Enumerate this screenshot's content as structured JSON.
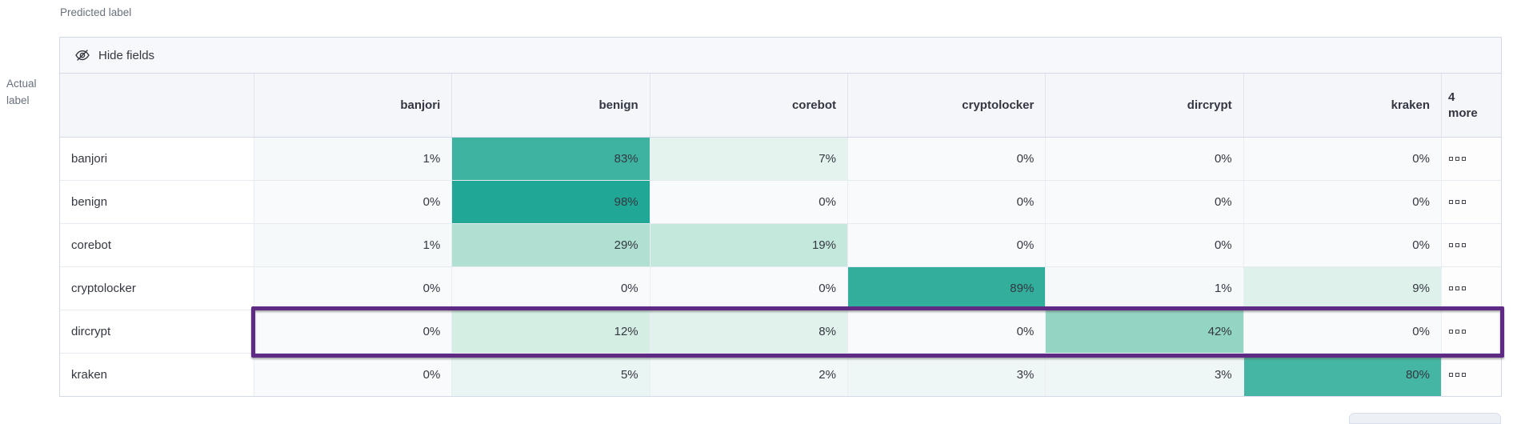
{
  "axis": {
    "predicted_label": "Predicted label",
    "actual_label_lines": [
      "Actual",
      "label"
    ]
  },
  "toolbar": {
    "hide_fields_label": "Hide fields"
  },
  "icons": {
    "hide_fields": "eye-closed-icon",
    "row_actions": "boxes-horizontal-icon"
  },
  "chart_data": {
    "type": "heatmap",
    "x_axis_label": "Predicted label",
    "y_axis_label": "Actual label",
    "columns": [
      "banjori",
      "benign",
      "corebot",
      "cryptolocker",
      "dircrypt",
      "kraken"
    ],
    "extra_columns_label": "4 more",
    "rows": [
      "banjori",
      "benign",
      "corebot",
      "cryptolocker",
      "dircrypt",
      "kraken"
    ],
    "unit": "%",
    "values_percent": [
      [
        1,
        83,
        7,
        0,
        0,
        0
      ],
      [
        0,
        98,
        0,
        0,
        0,
        0
      ],
      [
        1,
        29,
        19,
        0,
        0,
        0
      ],
      [
        0,
        0,
        0,
        89,
        1,
        9
      ],
      [
        0,
        12,
        8,
        0,
        42,
        0
      ],
      [
        0,
        5,
        2,
        3,
        3,
        80
      ]
    ],
    "highlighted_row": "dircrypt",
    "colors": {
      "heat_anchors": [
        {
          "value": 0,
          "color": "#F8FAFC"
        },
        {
          "value": 12,
          "color": "#D5EEE4"
        },
        {
          "value": 42,
          "color": "#92D5C3"
        },
        {
          "value": 98,
          "color": "#21A795"
        }
      ],
      "highlight_border": "#5E2A84"
    }
  }
}
